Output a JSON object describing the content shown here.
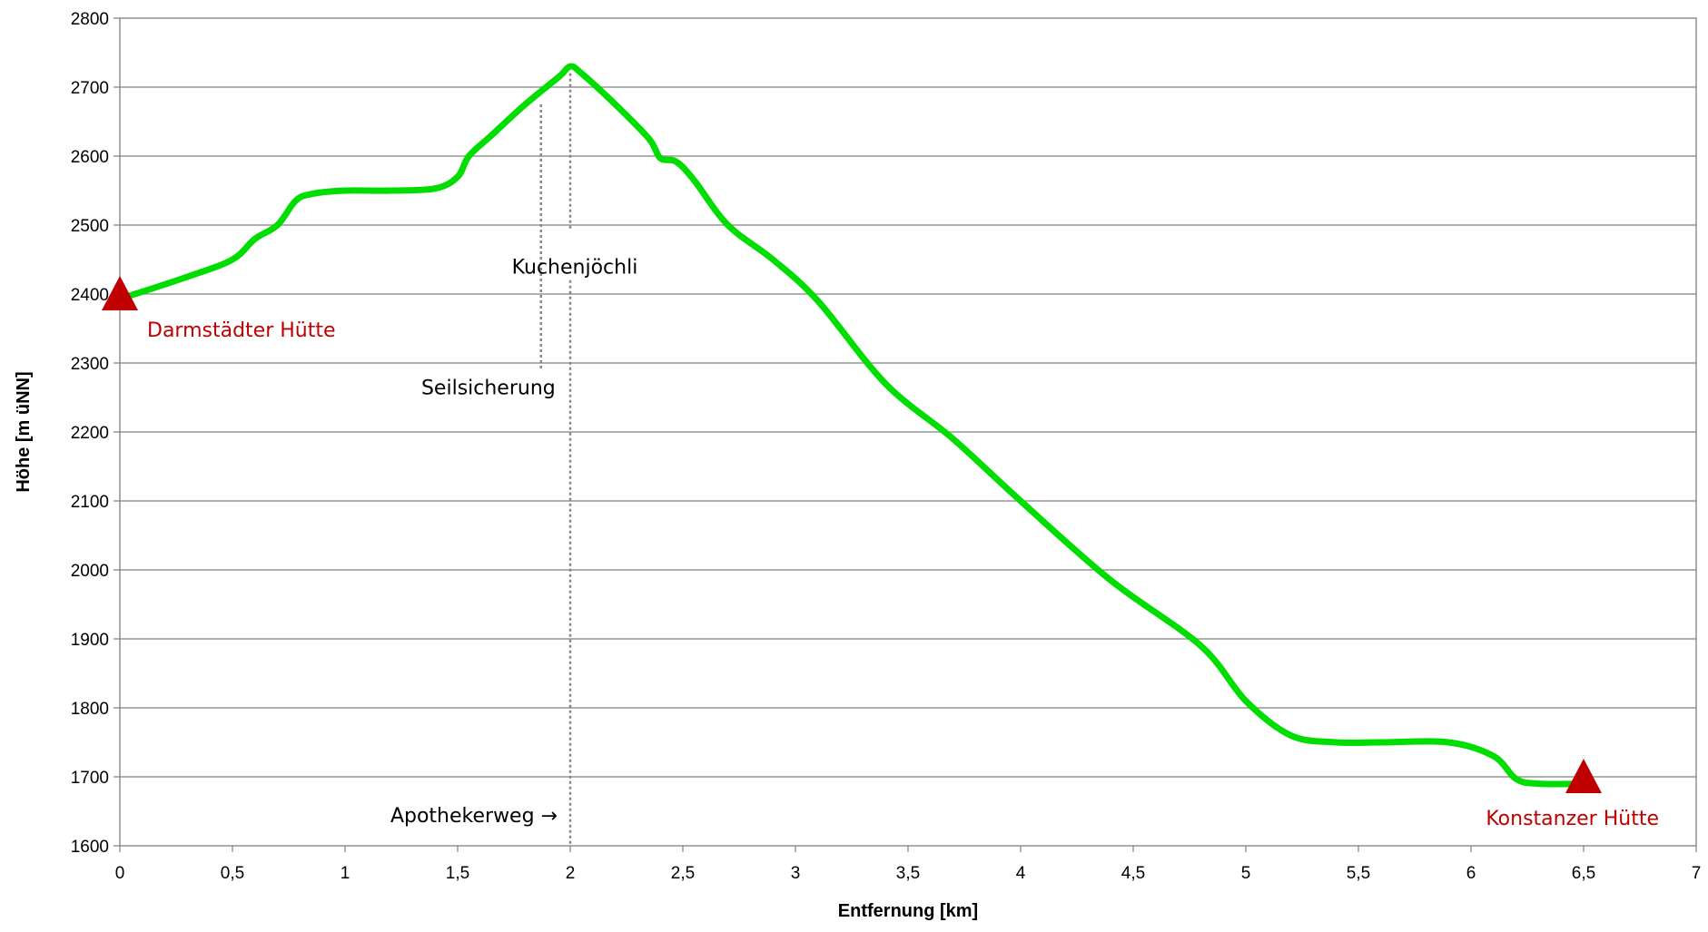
{
  "chart_data": {
    "type": "line",
    "title": "",
    "xlabel": "Entfernung [km]",
    "ylabel": "Höhe [m üNN]",
    "xlim": [
      0,
      7
    ],
    "ylim": [
      1600,
      2800
    ],
    "x_ticks": [
      0,
      0.5,
      1,
      1.5,
      2,
      2.5,
      3,
      3.5,
      4,
      4.5,
      5,
      5.5,
      6,
      6.5,
      7
    ],
    "x_tick_labels": [
      "0",
      "0,5",
      "1",
      "1,5",
      "2",
      "2,5",
      "3",
      "3,5",
      "4",
      "4,5",
      "5",
      "5,5",
      "6",
      "6,5",
      "7"
    ],
    "y_ticks": [
      1600,
      1700,
      1800,
      1900,
      2000,
      2100,
      2200,
      2300,
      2400,
      2500,
      2600,
      2700,
      2800
    ],
    "y_tick_labels": [
      "1600",
      "1700",
      "1800",
      "1900",
      "2000",
      "2100",
      "2200",
      "2300",
      "2400",
      "2500",
      "2600",
      "2700",
      "2800"
    ],
    "grid": "horizontal",
    "legend": "none",
    "series": [
      {
        "color": "#00dd00",
        "x": [
          0.02,
          0.3,
          0.5,
          0.6,
          0.7,
          0.78,
          0.85,
          1.0,
          1.2,
          1.4,
          1.5,
          1.55,
          1.65,
          1.8,
          1.95,
          2.0,
          2.05,
          2.2,
          2.35,
          2.4,
          2.47,
          2.55,
          2.7,
          2.9,
          3.1,
          3.4,
          3.7,
          4.0,
          4.4,
          4.8,
          5.0,
          5.2,
          5.4,
          5.6,
          5.9,
          6.1,
          6.2,
          6.3,
          6.5
        ],
        "y": [
          2395,
          2425,
          2450,
          2480,
          2500,
          2535,
          2545,
          2550,
          2550,
          2553,
          2570,
          2600,
          2630,
          2675,
          2715,
          2730,
          2720,
          2675,
          2625,
          2597,
          2592,
          2565,
          2500,
          2450,
          2390,
          2270,
          2190,
          2100,
          1985,
          1890,
          1810,
          1760,
          1750,
          1750,
          1750,
          1730,
          1697,
          1690,
          1690
        ]
      }
    ],
    "markers": [
      {
        "name": "darmstaedter",
        "label": "Darmstädter Hütte",
        "x": 0.0,
        "y": 2400,
        "color": "#c00000"
      },
      {
        "name": "konstanzer",
        "label": "Konstanzer Hütte",
        "x": 6.5,
        "y": 1700,
        "color": "#c00000"
      }
    ],
    "annotations": [
      {
        "name": "seilsicherung",
        "label": "Seilsicherung",
        "x": 1.87,
        "y_top": 2675,
        "y_bottom": 2290,
        "label_y": 2265,
        "anchor": "end"
      },
      {
        "name": "kuchenjoechli",
        "label": "Kuchenjöchli",
        "x": 2.0,
        "label_y": 2440,
        "anchor": "middle"
      },
      {
        "name": "apothekerweg",
        "label": "Apothekerweg →",
        "x": 2.0,
        "label_y": 1645,
        "anchor": "end"
      }
    ]
  }
}
